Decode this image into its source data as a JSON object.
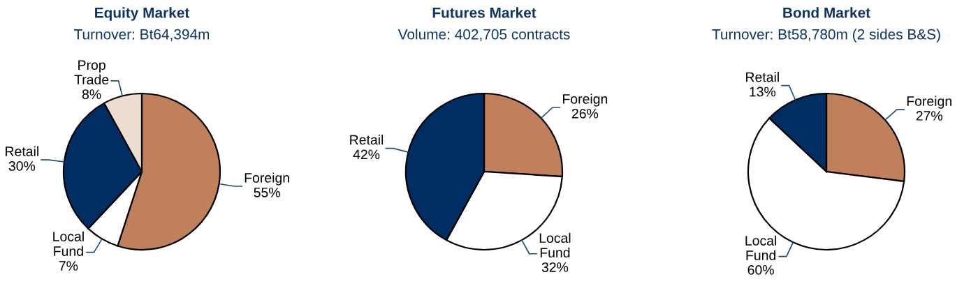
{
  "chart_data": [
    {
      "type": "pie",
      "title": "Equity Market",
      "subtitle": "Turnover: Bt64,394m",
      "categories": [
        "Foreign",
        "Local Fund",
        "Retail",
        "Prop Trade"
      ],
      "values": [
        55,
        7,
        30,
        8
      ],
      "colors": [
        "#c0805c",
        "#ffffff",
        "#002d62",
        "#eddcd2"
      ],
      "value_labels": [
        "55%",
        "7%",
        "30%",
        "8%"
      ]
    },
    {
      "type": "pie",
      "title": "Futures Market",
      "subtitle": "Volume: 402,705 contracts",
      "categories": [
        "Foreign",
        "Local Fund",
        "Retail"
      ],
      "values": [
        26,
        32,
        42
      ],
      "colors": [
        "#c0805c",
        "#ffffff",
        "#002d62"
      ],
      "value_labels": [
        "26%",
        "32%",
        "42%"
      ]
    },
    {
      "type": "pie",
      "title": "Bond Market",
      "subtitle": "Turnover: Bt58,780m (2 sides B&S)",
      "categories": [
        "Foreign",
        "Local Fund",
        "Retail"
      ],
      "values": [
        27,
        60,
        13
      ],
      "colors": [
        "#c0805c",
        "#ffffff",
        "#002d62"
      ],
      "value_labels": [
        "27%",
        "60%",
        "13%"
      ]
    }
  ]
}
